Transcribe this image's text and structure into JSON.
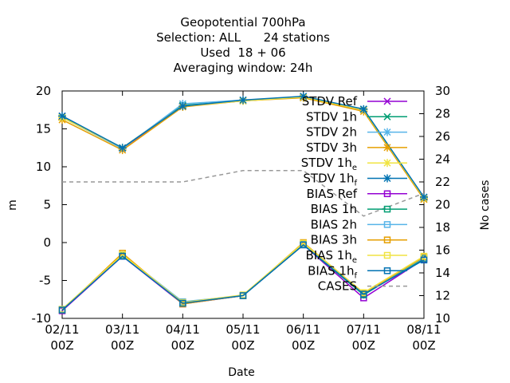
{
  "chart_data": {
    "type": "line",
    "title_lines": [
      "Geopotential 700hPa",
      "Selection: ALL      24 stations",
      "Used  18 + 06",
      "Averaging window: 24h"
    ],
    "xlabel": "Date",
    "ylabel": "m",
    "y2label": "No cases",
    "x_ticks": [
      [
        "02/11",
        "00Z"
      ],
      [
        "03/11",
        "00Z"
      ],
      [
        "04/11",
        "00Z"
      ],
      [
        "05/11",
        "00Z"
      ],
      [
        "06/11",
        "00Z"
      ],
      [
        "07/11",
        "00Z"
      ],
      [
        "08/11",
        "00Z"
      ]
    ],
    "ylim": [
      -10,
      20
    ],
    "y_ticks": [
      -10,
      -5,
      0,
      5,
      10,
      15,
      20
    ],
    "y2lim": [
      10,
      30
    ],
    "y2_ticks": [
      10,
      12,
      14,
      16,
      18,
      20,
      22,
      24,
      26,
      28,
      30
    ],
    "grid": false,
    "legend_position": "top-right",
    "series": [
      {
        "name": "STDV Ref",
        "label_base": "STDV Ref",
        "label_sub": "",
        "color": "#9400d3",
        "marker": "x",
        "axis": "y",
        "values": [
          16.7,
          12.4,
          18.0,
          18.7,
          19.2,
          17.5,
          5.9
        ]
      },
      {
        "name": "STDV 1h",
        "label_base": "STDV 1h",
        "label_sub": "",
        "color": "#009e73",
        "marker": "x",
        "axis": "y",
        "values": [
          16.6,
          12.5,
          18.1,
          18.7,
          19.2,
          17.6,
          5.9
        ]
      },
      {
        "name": "STDV 2h",
        "label_base": "STDV 2h",
        "label_sub": "",
        "color": "#56b4e9",
        "marker": "star",
        "axis": "y",
        "values": [
          16.5,
          12.4,
          18.3,
          18.8,
          19.1,
          17.5,
          5.8
        ]
      },
      {
        "name": "STDV 3h",
        "label_base": "STDV 3h",
        "label_sub": "",
        "color": "#e69f00",
        "marker": "star",
        "axis": "y",
        "values": [
          16.2,
          12.2,
          17.9,
          18.7,
          19.1,
          17.3,
          5.7
        ]
      },
      {
        "name": "STDV 1he",
        "label_base": "STDV 1h",
        "label_sub": "e",
        "color": "#f0e442",
        "marker": "star",
        "axis": "y",
        "values": [
          16.5,
          12.5,
          18.0,
          18.7,
          19.2,
          17.5,
          5.9
        ]
      },
      {
        "name": "STDV 1hf",
        "label_base": "STDV 1h",
        "label_sub": "f",
        "color": "#0072b2",
        "marker": "star",
        "axis": "y",
        "values": [
          16.7,
          12.5,
          18.0,
          18.8,
          19.3,
          17.6,
          6.0
        ]
      },
      {
        "name": "BIAS Ref",
        "label_base": "BIAS Ref",
        "label_sub": "",
        "color": "#9400d3",
        "marker": "square",
        "axis": "y",
        "values": [
          -9.0,
          -1.8,
          -8.1,
          -7.0,
          -0.3,
          -7.3,
          -2.2
        ]
      },
      {
        "name": "BIAS 1h",
        "label_base": "BIAS 1h",
        "label_sub": "",
        "color": "#009e73",
        "marker": "square",
        "axis": "y",
        "values": [
          -8.9,
          -1.7,
          -8.0,
          -7.0,
          -0.3,
          -6.9,
          -2.1
        ]
      },
      {
        "name": "BIAS 2h",
        "label_base": "BIAS 2h",
        "label_sub": "",
        "color": "#56b4e9",
        "marker": "square",
        "axis": "y",
        "values": [
          -8.8,
          -1.6,
          -7.8,
          -7.0,
          -0.2,
          -6.7,
          -2.0
        ]
      },
      {
        "name": "BIAS 3h",
        "label_base": "BIAS 3h",
        "label_sub": "",
        "color": "#e69f00",
        "marker": "square",
        "axis": "y",
        "values": [
          -8.9,
          -1.4,
          -8.1,
          -7.0,
          0.0,
          -6.7,
          -1.9
        ]
      },
      {
        "name": "BIAS 1he",
        "label_base": "BIAS 1h",
        "label_sub": "e",
        "color": "#f0e442",
        "marker": "square",
        "axis": "y",
        "values": [
          -8.8,
          -1.6,
          -7.9,
          -6.9,
          -0.1,
          -6.6,
          -1.8
        ]
      },
      {
        "name": "BIAS 1hf",
        "label_base": "BIAS 1h",
        "label_sub": "f",
        "color": "#0072b2",
        "marker": "square",
        "axis": "y",
        "values": [
          -8.9,
          -1.8,
          -8.0,
          -7.0,
          -0.3,
          -6.8,
          -2.3
        ]
      },
      {
        "name": "CASES",
        "label_base": "CASES",
        "label_sub": "",
        "color": "#999999",
        "marker": "none",
        "dashed": true,
        "axis": "y2",
        "values": [
          22,
          22,
          22,
          23,
          23,
          19,
          21
        ]
      }
    ]
  }
}
